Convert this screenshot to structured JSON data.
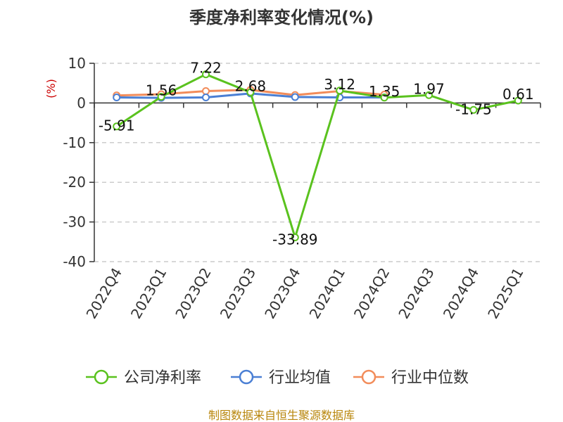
{
  "chart_data": {
    "type": "line",
    "title": "季度净利率变化情况(%)",
    "ylabel": "(%)",
    "ylim": [
      -40,
      10
    ],
    "yticks": [
      10,
      0,
      -10,
      -20,
      -30,
      -40
    ],
    "grid": true,
    "legend_position": "bottom",
    "categories": [
      "2022Q4",
      "2023Q1",
      "2023Q2",
      "2023Q3",
      "2023Q4",
      "2024Q1",
      "2024Q2",
      "2024Q3",
      "2024Q4",
      "2025Q1"
    ],
    "series": [
      {
        "name": "公司净利率",
        "color": "#5ac21e",
        "values": [
          -5.91,
          1.56,
          7.22,
          2.68,
          -33.89,
          3.12,
          1.35,
          1.97,
          -1.75,
          0.61
        ],
        "labels": [
          "-5.91",
          "1.56",
          "7.22",
          "2.68",
          "-33.89",
          "3.12",
          "1.35",
          "1.97",
          "-1.75",
          "0.61"
        ]
      },
      {
        "name": "行业均值",
        "color": "#4a7fd4",
        "values": [
          1.4,
          1.3,
          1.4,
          2.4,
          1.5,
          1.4,
          1.4,
          null,
          null,
          null
        ]
      },
      {
        "name": "行业中位数",
        "color": "#f28c5a",
        "values": [
          1.9,
          2.2,
          3.0,
          3.3,
          2.0,
          3.0,
          2.1,
          null,
          null,
          null
        ]
      }
    ],
    "source": "制图数据来自恒生聚源数据库"
  }
}
